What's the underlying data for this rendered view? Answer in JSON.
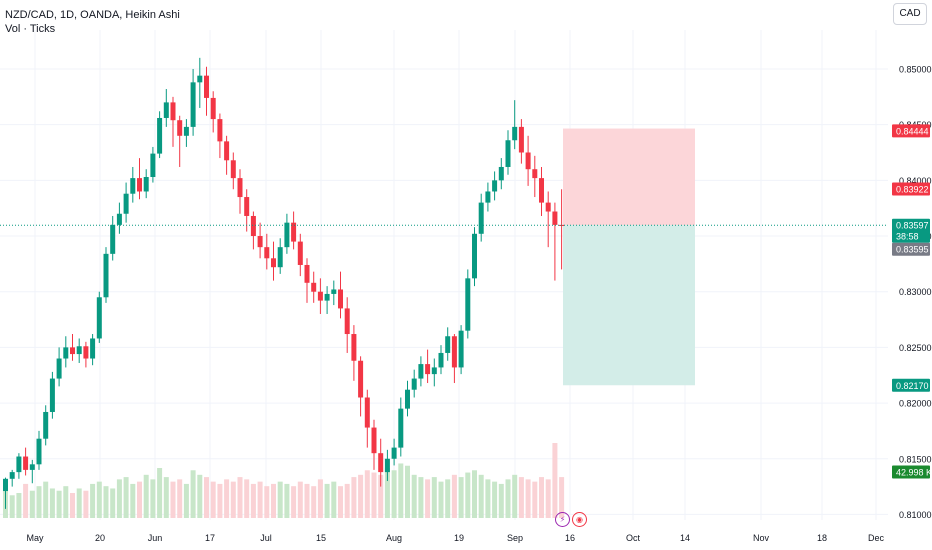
{
  "header": {
    "symbol_line": "NZD/CAD, 1D, OANDA, Heikin Ashi",
    "volume_line": "Vol · Ticks"
  },
  "currency_button": "CAD",
  "colors": {
    "up": "#089981",
    "down": "#f23645",
    "up_volume": "#c8e6c9",
    "down_volume": "#fad2d5",
    "stop_zone": "#fcd6d9",
    "target_zone": "#d3ede8",
    "grid": "#f0f3fa"
  },
  "icons": [
    "lightning-icon",
    "broadcast-icon"
  ],
  "chart_data": {
    "type": "candlestick",
    "subtype": "Heikin Ashi",
    "symbol": "NZD/CAD",
    "timeframe": "1D",
    "y_axis": {
      "ticks": [
        "0.85000",
        "0.84500",
        "0.84000",
        "0.83500",
        "0.83000",
        "0.82500",
        "0.82000",
        "0.81500",
        "0.81000"
      ],
      "ylim": [
        0.8095,
        0.8535
      ]
    },
    "x_axis": {
      "ticks": [
        "May",
        "20",
        "Jun",
        "17",
        "Jul",
        "15",
        "Aug",
        "19",
        "Sep",
        "16",
        "Oct",
        "14",
        "Nov",
        "18",
        "Dec"
      ]
    },
    "price_labels": [
      {
        "value": "0.84444",
        "role": "stop"
      },
      {
        "value": "0.83922",
        "role": "entry-high"
      },
      {
        "value": "0.83597",
        "role": "last-price"
      },
      {
        "value": "38:58",
        "role": "countdown"
      },
      {
        "value": "0.83595",
        "role": "marker"
      },
      {
        "value": "0.82170",
        "role": "target"
      },
      {
        "value": "42.998 K",
        "role": "volume"
      }
    ],
    "position": {
      "entry": 0.83597,
      "stop": 0.84444,
      "target": 0.8217
    },
    "candles": [
      [
        0.8121,
        0.8133,
        0.8132,
        0.8105
      ],
      [
        0.8132,
        0.814,
        0.8138,
        0.8125
      ],
      [
        0.8138,
        0.8155,
        0.8152,
        0.8132
      ],
      [
        0.8152,
        0.816,
        0.814,
        0.8135
      ],
      [
        0.814,
        0.8149,
        0.8145,
        0.8128
      ],
      [
        0.8145,
        0.8175,
        0.8168,
        0.814
      ],
      [
        0.8168,
        0.8198,
        0.8192,
        0.8162
      ],
      [
        0.8192,
        0.8228,
        0.8222,
        0.8186
      ],
      [
        0.8222,
        0.825,
        0.824,
        0.8215
      ],
      [
        0.824,
        0.826,
        0.825,
        0.8232
      ],
      [
        0.825,
        0.8262,
        0.8244,
        0.8238
      ],
      [
        0.8244,
        0.8258,
        0.8251,
        0.8236
      ],
      [
        0.8251,
        0.8255,
        0.824,
        0.8232
      ],
      [
        0.824,
        0.8262,
        0.8258,
        0.8234
      ],
      [
        0.8258,
        0.83,
        0.8295,
        0.8254
      ],
      [
        0.8295,
        0.834,
        0.8334,
        0.829
      ],
      [
        0.8334,
        0.8368,
        0.836,
        0.8328
      ],
      [
        0.836,
        0.838,
        0.837,
        0.8352
      ],
      [
        0.837,
        0.8398,
        0.8388,
        0.8362
      ],
      [
        0.8388,
        0.8412,
        0.8402,
        0.838
      ],
      [
        0.8402,
        0.842,
        0.839,
        0.8383
      ],
      [
        0.839,
        0.841,
        0.8403,
        0.8384
      ],
      [
        0.8403,
        0.843,
        0.8424,
        0.8398
      ],
      [
        0.8424,
        0.8462,
        0.8456,
        0.842
      ],
      [
        0.8456,
        0.8482,
        0.847,
        0.8448
      ],
      [
        0.847,
        0.8475,
        0.8454,
        0.843
      ],
      [
        0.8454,
        0.8458,
        0.844,
        0.8412
      ],
      [
        0.844,
        0.8455,
        0.8448,
        0.843
      ],
      [
        0.8448,
        0.85,
        0.8488,
        0.844
      ],
      [
        0.8488,
        0.851,
        0.8494,
        0.8465
      ],
      [
        0.8494,
        0.8502,
        0.8474,
        0.8458
      ],
      [
        0.8474,
        0.848,
        0.8455,
        0.8443
      ],
      [
        0.8455,
        0.846,
        0.8435,
        0.842
      ],
      [
        0.8435,
        0.844,
        0.8418,
        0.8405
      ],
      [
        0.8418,
        0.8425,
        0.8402,
        0.8392
      ],
      [
        0.8402,
        0.841,
        0.8385,
        0.837
      ],
      [
        0.8385,
        0.8392,
        0.8368,
        0.8354
      ],
      [
        0.8368,
        0.8372,
        0.835,
        0.8338
      ],
      [
        0.835,
        0.8362,
        0.834,
        0.833
      ],
      [
        0.834,
        0.8352,
        0.833,
        0.832
      ],
      [
        0.833,
        0.8345,
        0.8322,
        0.831
      ],
      [
        0.8322,
        0.8348,
        0.834,
        0.8316
      ],
      [
        0.834,
        0.837,
        0.8362,
        0.8334
      ],
      [
        0.8362,
        0.8372,
        0.8345,
        0.8338
      ],
      [
        0.8345,
        0.8352,
        0.8324,
        0.8314
      ],
      [
        0.8324,
        0.833,
        0.8308,
        0.829
      ],
      [
        0.8308,
        0.8318,
        0.83,
        0.829
      ],
      [
        0.83,
        0.8312,
        0.8292,
        0.828
      ],
      [
        0.8292,
        0.8305,
        0.8298,
        0.828
      ],
      [
        0.8298,
        0.831,
        0.8302,
        0.8288
      ],
      [
        0.8302,
        0.8318,
        0.8285,
        0.8276
      ],
      [
        0.8285,
        0.8295,
        0.8262,
        0.8245
      ],
      [
        0.8262,
        0.827,
        0.8238,
        0.822
      ],
      [
        0.8238,
        0.8242,
        0.8205,
        0.8188
      ],
      [
        0.8205,
        0.8212,
        0.8178,
        0.816
      ],
      [
        0.8178,
        0.8185,
        0.8155,
        0.814
      ],
      [
        0.8155,
        0.8168,
        0.8138,
        0.8125
      ],
      [
        0.8138,
        0.8158,
        0.815,
        0.813
      ],
      [
        0.815,
        0.8168,
        0.816,
        0.8144
      ],
      [
        0.816,
        0.8205,
        0.8195,
        0.8152
      ],
      [
        0.8195,
        0.822,
        0.8212,
        0.8188
      ],
      [
        0.8212,
        0.823,
        0.8222,
        0.8205
      ],
      [
        0.8222,
        0.8242,
        0.8235,
        0.8215
      ],
      [
        0.8235,
        0.8248,
        0.8226,
        0.8218
      ],
      [
        0.8226,
        0.824,
        0.8232,
        0.8215
      ],
      [
        0.8232,
        0.8252,
        0.8245,
        0.8226
      ],
      [
        0.8245,
        0.8268,
        0.826,
        0.8238
      ],
      [
        0.826,
        0.8262,
        0.8232,
        0.8218
      ],
      [
        0.8232,
        0.827,
        0.8265,
        0.8226
      ],
      [
        0.8265,
        0.832,
        0.8312,
        0.8258
      ],
      [
        0.8312,
        0.8358,
        0.8352,
        0.8305
      ],
      [
        0.8352,
        0.8388,
        0.838,
        0.8345
      ],
      [
        0.838,
        0.8398,
        0.839,
        0.8372
      ],
      [
        0.839,
        0.8408,
        0.84,
        0.8382
      ],
      [
        0.84,
        0.842,
        0.8412,
        0.8392
      ],
      [
        0.8412,
        0.8445,
        0.8436,
        0.8405
      ],
      [
        0.8436,
        0.8472,
        0.8448,
        0.8428
      ],
      [
        0.8448,
        0.8455,
        0.8425,
        0.8415
      ],
      [
        0.8425,
        0.844,
        0.841,
        0.8395
      ],
      [
        0.841,
        0.8422,
        0.8402,
        0.8385
      ],
      [
        0.8402,
        0.8412,
        0.838,
        0.8368
      ],
      [
        0.838,
        0.839,
        0.8372,
        0.834
      ],
      [
        0.8372,
        0.838,
        0.836,
        0.831
      ],
      [
        0.836,
        0.8392,
        0.8359,
        0.832
      ]
    ],
    "volumes": [
      0.012,
      0.01,
      0.011,
      0.015,
      0.012,
      0.014,
      0.016,
      0.013,
      0.012,
      0.014,
      0.011,
      0.013,
      0.012,
      0.015,
      0.016,
      0.014,
      0.013,
      0.017,
      0.018,
      0.015,
      0.016,
      0.019,
      0.017,
      0.022,
      0.018,
      0.016,
      0.017,
      0.015,
      0.021,
      0.019,
      0.018,
      0.016,
      0.015,
      0.017,
      0.016,
      0.018,
      0.017,
      0.015,
      0.016,
      0.014,
      0.015,
      0.016,
      0.015,
      0.014,
      0.016,
      0.015,
      0.014,
      0.017,
      0.015,
      0.016,
      0.014,
      0.015,
      0.018,
      0.019,
      0.021,
      0.02,
      0.019,
      0.022,
      0.021,
      0.024,
      0.023,
      0.019,
      0.018,
      0.017,
      0.018,
      0.016,
      0.017,
      0.019,
      0.018,
      0.02,
      0.021,
      0.019,
      0.017,
      0.016,
      0.015,
      0.017,
      0.019,
      0.018,
      0.017,
      0.016,
      0.018,
      0.017,
      0.033,
      0.018
    ]
  }
}
